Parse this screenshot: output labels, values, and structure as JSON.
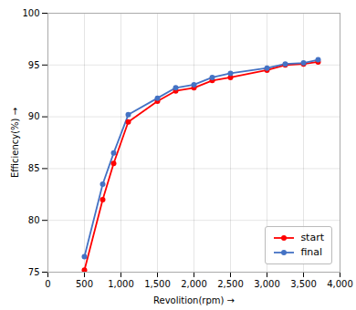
{
  "chart_data": {
    "type": "line",
    "xlabel": "Revolition(rpm)",
    "ylabel": "Efficiency(%)",
    "x": [
      500,
      750,
      900,
      1100,
      1500,
      1750,
      2000,
      2250,
      2500,
      3000,
      3250,
      3500,
      3700
    ],
    "series": [
      {
        "name": "start",
        "color": "#ff0000",
        "marker": "circle",
        "values": [
          75.2,
          82.0,
          85.5,
          89.5,
          91.5,
          92.5,
          92.8,
          93.5,
          93.8,
          94.5,
          95.0,
          95.1,
          95.3
        ]
      },
      {
        "name": "final",
        "color": "#4472c4",
        "marker": "circle",
        "values": [
          76.5,
          83.5,
          86.5,
          90.2,
          91.8,
          92.8,
          93.1,
          93.8,
          94.2,
          94.7,
          95.1,
          95.2,
          95.5
        ]
      }
    ],
    "xlim": [
      0,
      4000
    ],
    "ylim": [
      75,
      100
    ],
    "xticks": [
      0,
      500,
      {
        "value": 1000,
        "label": "1,000"
      },
      {
        "value": 1500,
        "label": "1,500"
      },
      {
        "value": 2000,
        "label": "2,000"
      },
      {
        "value": 2500,
        "label": "2,500"
      },
      {
        "value": 3000,
        "label": "3,000"
      },
      {
        "value": 3500,
        "label": "3,500"
      },
      {
        "value": 4000,
        "label": "4,000"
      }
    ],
    "yticks": [
      75,
      80,
      85,
      90,
      95,
      100
    ],
    "grid": true,
    "legend": "lower right"
  }
}
